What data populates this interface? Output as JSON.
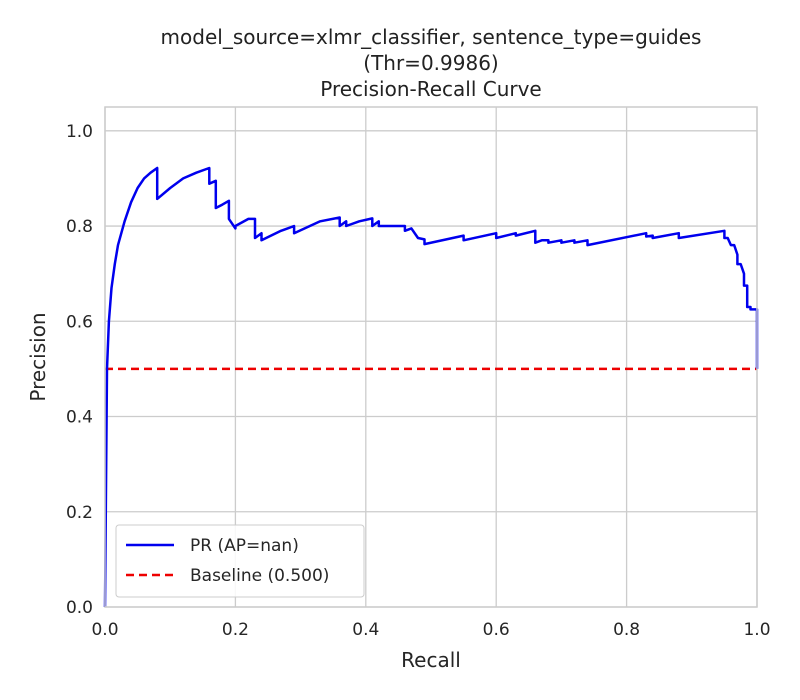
{
  "chart_data": {
    "type": "line",
    "title_lines": [
      "model_source=xlmr_classifier, sentence_type=guides",
      "(Thr=0.9986)",
      "Precision-Recall Curve"
    ],
    "xlabel": "Recall",
    "ylabel": "Precision",
    "xlim": [
      0.0,
      1.0
    ],
    "ylim": [
      0.0,
      1.05
    ],
    "x_ticks": [
      "0.0",
      "0.2",
      "0.4",
      "0.6",
      "0.8",
      "1.0"
    ],
    "y_ticks": [
      "0.0",
      "0.2",
      "0.4",
      "0.6",
      "0.8",
      "1.0"
    ],
    "grid": true,
    "legend_position": "lower-left",
    "series": [
      {
        "name": "PR (AP=nan)",
        "color": "#0000ee",
        "style": "solid",
        "x": [
          0.0,
          0.003,
          0.006,
          0.01,
          0.015,
          0.02,
          0.03,
          0.04,
          0.05,
          0.06,
          0.07,
          0.08,
          0.08,
          0.1,
          0.12,
          0.14,
          0.16,
          0.16,
          0.17,
          0.17,
          0.18,
          0.19,
          0.19,
          0.2,
          0.2,
          0.22,
          0.23,
          0.23,
          0.24,
          0.24,
          0.27,
          0.28,
          0.29,
          0.29,
          0.33,
          0.36,
          0.36,
          0.37,
          0.37,
          0.39,
          0.41,
          0.41,
          0.42,
          0.42,
          0.46,
          0.46,
          0.47,
          0.48,
          0.49,
          0.49,
          0.55,
          0.55,
          0.6,
          0.6,
          0.63,
          0.63,
          0.66,
          0.66,
          0.67,
          0.68,
          0.68,
          0.7,
          0.7,
          0.72,
          0.72,
          0.74,
          0.74,
          0.83,
          0.83,
          0.84,
          0.84,
          0.88,
          0.88,
          0.95,
          0.95,
          0.955,
          0.96,
          0.965,
          0.97,
          0.97,
          0.975,
          0.98,
          0.98,
          0.985,
          0.985,
          0.99,
          0.99,
          1.0,
          1.0
        ],
        "y": [
          0.0,
          0.5,
          0.6,
          0.67,
          0.72,
          0.76,
          0.81,
          0.85,
          0.88,
          0.9,
          0.912,
          0.922,
          0.857,
          0.88,
          0.9,
          0.912,
          0.922,
          0.889,
          0.895,
          0.838,
          0.845,
          0.853,
          0.815,
          0.795,
          0.8,
          0.815,
          0.815,
          0.775,
          0.785,
          0.77,
          0.79,
          0.795,
          0.8,
          0.785,
          0.81,
          0.818,
          0.8,
          0.81,
          0.8,
          0.81,
          0.816,
          0.8,
          0.81,
          0.8,
          0.8,
          0.79,
          0.795,
          0.775,
          0.772,
          0.762,
          0.78,
          0.77,
          0.785,
          0.775,
          0.785,
          0.78,
          0.79,
          0.765,
          0.77,
          0.77,
          0.765,
          0.77,
          0.765,
          0.77,
          0.765,
          0.77,
          0.76,
          0.785,
          0.778,
          0.78,
          0.775,
          0.785,
          0.775,
          0.79,
          0.775,
          0.775,
          0.76,
          0.76,
          0.74,
          0.72,
          0.72,
          0.7,
          0.675,
          0.675,
          0.63,
          0.63,
          0.625,
          0.625,
          0.5
        ]
      },
      {
        "name": "Baseline (0.500)",
        "color": "#ee0000",
        "style": "dashed",
        "x": [
          0.0,
          1.0
        ],
        "y": [
          0.5,
          0.5
        ]
      }
    ]
  }
}
